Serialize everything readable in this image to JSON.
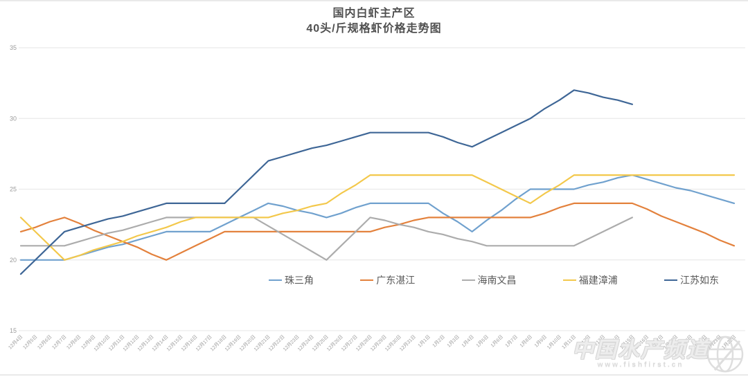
{
  "title": {
    "line1": "国内白虾主产区",
    "line2": "40头/斤规格虾价格走势图"
  },
  "watermark": {
    "brand": "中国水产频道",
    "url": "www.fishfirst.cn"
  },
  "chart_data": {
    "type": "line",
    "title": "国内白虾主产区 40头/斤规格虾价格走势图",
    "xlabel": "",
    "ylabel": "",
    "ylim": [
      15,
      35
    ],
    "yticks": [
      15,
      20,
      25,
      30,
      35
    ],
    "grid": true,
    "legend_position": "bottom-center-inside",
    "categories": [
      "12月4日",
      "12月5日",
      "12月6日",
      "12月7日",
      "12月8日",
      "12月9日",
      "12月10日",
      "12月11日",
      "12月12日",
      "12月13日",
      "12月14日",
      "12月15日",
      "12月16日",
      "12月17日",
      "12月18日",
      "12月19日",
      "12月20日",
      "12月21日",
      "12月22日",
      "12月23日",
      "12月24日",
      "12月25日",
      "12月26日",
      "12月27日",
      "12月28日",
      "12月29日",
      "12月30日",
      "12月31日",
      "1月1日",
      "1月2日",
      "1月3日",
      "1月4日",
      "1月5日",
      "1月6日",
      "1月7日",
      "1月8日",
      "1月9日",
      "1月10日",
      "1月11日",
      "1月12日",
      "1月13日",
      "1月14日",
      "1月15日",
      "1月16日",
      "1月17日",
      "1月18日",
      "1月19日",
      "1月20日",
      "1月21日",
      "1月22日"
    ],
    "series": [
      {
        "name": "珠三角",
        "color": "#70A1CE",
        "values": [
          20,
          20,
          20,
          20,
          20.3,
          20.6,
          20.9,
          21.1,
          21.4,
          21.7,
          22,
          22,
          22,
          22,
          22.5,
          23,
          23.5,
          24,
          23.8,
          23.5,
          23.3,
          23,
          23.3,
          23.7,
          24,
          24,
          24,
          24,
          24,
          23.3,
          22.7,
          22,
          22.8,
          23.5,
          24.3,
          25,
          25,
          25,
          25,
          25.3,
          25.5,
          25.8,
          26,
          25.7,
          25.4,
          25.1,
          24.9,
          24.6,
          24.3,
          24
        ]
      },
      {
        "name": "广东湛江",
        "color": "#E3813C",
        "values": [
          22,
          22.3,
          22.7,
          23,
          22.6,
          22.1,
          21.7,
          21.3,
          20.9,
          20.4,
          20,
          20.5,
          21,
          21.5,
          22,
          22,
          22,
          22,
          22,
          22,
          22,
          22,
          22,
          22,
          22,
          22.3,
          22.5,
          22.8,
          23,
          23,
          23,
          23,
          23,
          23,
          23,
          23,
          23.3,
          23.7,
          24,
          24,
          24,
          24,
          24,
          23.6,
          23.1,
          22.7,
          22.3,
          21.9,
          21.4,
          21
        ]
      },
      {
        "name": "海南文昌",
        "color": "#ACACAC",
        "values": [
          21,
          21,
          21,
          21,
          21.3,
          21.6,
          21.9,
          22.1,
          22.4,
          22.7,
          23,
          23,
          23,
          23,
          23,
          23,
          23,
          22.4,
          21.8,
          21.2,
          20.6,
          20,
          21,
          22,
          23,
          22.8,
          22.5,
          22.3,
          22,
          21.8,
          21.5,
          21.3,
          21,
          21,
          21,
          21,
          21,
          21,
          21,
          21.5,
          22,
          22.5,
          23,
          null,
          null,
          null,
          null,
          null,
          null,
          null
        ]
      },
      {
        "name": "福建漳浦",
        "color": "#F3C84B",
        "values": [
          23,
          22,
          21,
          20,
          20.3,
          20.7,
          21,
          21.3,
          21.7,
          22,
          22.3,
          22.7,
          23,
          23,
          23,
          23,
          23,
          23,
          23.3,
          23.5,
          23.8,
          24,
          24.7,
          25.3,
          26,
          26,
          26,
          26,
          26,
          26,
          26,
          26,
          25.5,
          25,
          24.5,
          24,
          24.7,
          25.3,
          26,
          26,
          26,
          26,
          26,
          26,
          26,
          26,
          26,
          26,
          26,
          26
        ]
      },
      {
        "name": "江苏如东",
        "color": "#3E6696",
        "values": [
          19,
          20,
          21,
          22,
          22.3,
          22.6,
          22.9,
          23.1,
          23.4,
          23.7,
          24,
          24,
          24,
          24,
          24,
          25,
          26,
          27,
          27.3,
          27.6,
          27.9,
          28.1,
          28.4,
          28.7,
          29,
          29,
          29,
          29,
          29,
          28.7,
          28.3,
          28,
          28.5,
          29,
          29.5,
          30,
          30.7,
          31.3,
          32,
          31.8,
          31.5,
          31.3,
          31,
          null,
          null,
          null,
          null,
          null,
          null,
          null
        ]
      }
    ]
  }
}
